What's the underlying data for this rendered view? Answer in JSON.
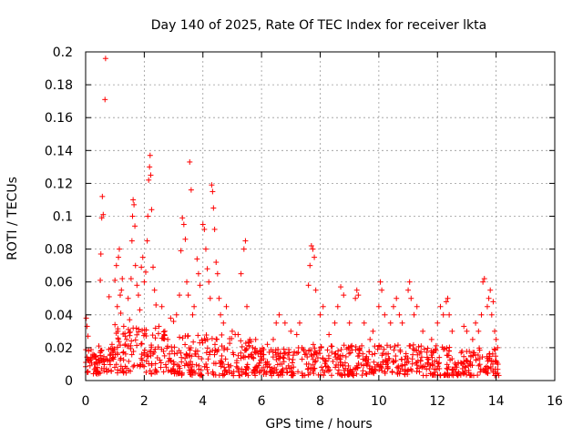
{
  "chart_data": {
    "type": "scatter",
    "title": "Day 140 of 2025, Rate Of TEC Index for receiver lkta",
    "xlabel": "GPS time / hours",
    "ylabel": "ROTI / TECUs",
    "xlim": [
      0,
      16
    ],
    "ylim": [
      0,
      0.2
    ],
    "xticks": [
      0,
      2,
      4,
      6,
      8,
      10,
      12,
      14,
      16
    ],
    "xtick_labels": [
      "0",
      "2",
      "4",
      "6",
      "8",
      "10",
      "12",
      "14",
      "16"
    ],
    "yticks": [
      0,
      0.02,
      0.04,
      0.06,
      0.08,
      0.1,
      0.12,
      0.14,
      0.16,
      0.18,
      0.2
    ],
    "ytick_labels": [
      "0",
      "0.02",
      "0.04",
      "0.06",
      "0.08",
      "0.1",
      "0.12",
      "0.14",
      "0.16",
      "0.18",
      "0.2"
    ],
    "grid": true,
    "marker": "+",
    "color": "#ff0000",
    "series": [
      {
        "name": "ROTI",
        "points": [
          [
            0.02,
            0.038
          ],
          [
            0.05,
            0.033
          ],
          [
            0.08,
            0.027
          ],
          [
            0.1,
            0.018
          ],
          [
            0.12,
            0.012
          ],
          [
            0.15,
            0.009
          ],
          [
            0.18,
            0.014
          ],
          [
            0.2,
            0.011
          ],
          [
            0.25,
            0.016
          ],
          [
            0.3,
            0.01
          ],
          [
            0.35,
            0.013
          ],
          [
            0.4,
            0.008
          ],
          [
            0.45,
            0.021
          ],
          [
            0.5,
            0.017
          ],
          [
            0.5,
            0.061
          ],
          [
            0.52,
            0.077
          ],
          [
            0.55,
            0.099
          ],
          [
            0.57,
            0.112
          ],
          [
            0.6,
            0.101
          ],
          [
            0.62,
            0.013
          ],
          [
            0.66,
            0.171
          ],
          [
            0.68,
            0.196
          ],
          [
            0.75,
            0.012
          ],
          [
            0.8,
            0.051
          ],
          [
            0.85,
            0.016
          ],
          [
            0.9,
            0.022
          ],
          [
            0.95,
            0.018
          ],
          [
            1.0,
            0.034
          ],
          [
            1.0,
            0.061
          ],
          [
            1.05,
            0.07
          ],
          [
            1.08,
            0.045
          ],
          [
            1.1,
            0.03
          ],
          [
            1.12,
            0.075
          ],
          [
            1.15,
            0.08
          ],
          [
            1.18,
            0.052
          ],
          [
            1.2,
            0.041
          ],
          [
            1.22,
            0.055
          ],
          [
            1.25,
            0.062
          ],
          [
            1.3,
            0.033
          ],
          [
            1.35,
            0.027
          ],
          [
            1.4,
            0.025
          ],
          [
            1.45,
            0.05
          ],
          [
            1.5,
            0.037
          ],
          [
            1.55,
            0.062
          ],
          [
            1.58,
            0.085
          ],
          [
            1.6,
            0.1
          ],
          [
            1.62,
            0.11
          ],
          [
            1.65,
            0.107
          ],
          [
            1.68,
            0.094
          ],
          [
            1.7,
            0.07
          ],
          [
            1.75,
            0.058
          ],
          [
            1.8,
            0.052
          ],
          [
            1.85,
            0.043
          ],
          [
            1.9,
            0.069
          ],
          [
            1.95,
            0.075
          ],
          [
            2.0,
            0.06
          ],
          [
            2.05,
            0.066
          ],
          [
            2.1,
            0.085
          ],
          [
            2.12,
            0.1
          ],
          [
            2.15,
            0.122
          ],
          [
            2.18,
            0.13
          ],
          [
            2.2,
            0.137
          ],
          [
            2.22,
            0.125
          ],
          [
            2.25,
            0.104
          ],
          [
            2.3,
            0.069
          ],
          [
            2.35,
            0.055
          ],
          [
            2.4,
            0.046
          ],
          [
            2.5,
            0.033
          ],
          [
            2.6,
            0.045
          ],
          [
            2.7,
            0.03
          ],
          [
            2.8,
            0.025
          ],
          [
            2.9,
            0.038
          ],
          [
            3.0,
            0.036
          ],
          [
            3.1,
            0.04
          ],
          [
            3.2,
            0.052
          ],
          [
            3.25,
            0.079
          ],
          [
            3.3,
            0.099
          ],
          [
            3.35,
            0.095
          ],
          [
            3.4,
            0.086
          ],
          [
            3.45,
            0.06
          ],
          [
            3.5,
            0.052
          ],
          [
            3.55,
            0.133
          ],
          [
            3.6,
            0.116
          ],
          [
            3.65,
            0.04
          ],
          [
            3.7,
            0.045
          ],
          [
            3.8,
            0.074
          ],
          [
            3.85,
            0.065
          ],
          [
            3.9,
            0.058
          ],
          [
            4.0,
            0.095
          ],
          [
            4.05,
            0.092
          ],
          [
            4.1,
            0.08
          ],
          [
            4.15,
            0.068
          ],
          [
            4.2,
            0.06
          ],
          [
            4.25,
            0.05
          ],
          [
            4.3,
            0.119
          ],
          [
            4.33,
            0.115
          ],
          [
            4.36,
            0.105
          ],
          [
            4.4,
            0.092
          ],
          [
            4.45,
            0.072
          ],
          [
            4.5,
            0.065
          ],
          [
            4.55,
            0.05
          ],
          [
            4.6,
            0.04
          ],
          [
            4.7,
            0.035
          ],
          [
            4.8,
            0.045
          ],
          [
            5.0,
            0.03
          ],
          [
            5.1,
            0.028
          ],
          [
            5.2,
            0.028
          ],
          [
            5.3,
            0.065
          ],
          [
            5.4,
            0.08
          ],
          [
            5.45,
            0.085
          ],
          [
            5.5,
            0.045
          ],
          [
            5.6,
            0.025
          ],
          [
            5.7,
            0.02
          ],
          [
            5.8,
            0.025
          ],
          [
            6.0,
            0.018
          ],
          [
            6.2,
            0.022
          ],
          [
            6.4,
            0.025
          ],
          [
            6.5,
            0.035
          ],
          [
            6.6,
            0.04
          ],
          [
            6.8,
            0.035
          ],
          [
            7.0,
            0.03
          ],
          [
            7.2,
            0.028
          ],
          [
            7.3,
            0.035
          ],
          [
            7.6,
            0.058
          ],
          [
            7.65,
            0.07
          ],
          [
            7.7,
            0.082
          ],
          [
            7.75,
            0.08
          ],
          [
            7.8,
            0.075
          ],
          [
            7.85,
            0.055
          ],
          [
            8.0,
            0.04
          ],
          [
            8.1,
            0.045
          ],
          [
            8.3,
            0.028
          ],
          [
            8.5,
            0.035
          ],
          [
            8.6,
            0.045
          ],
          [
            8.7,
            0.057
          ],
          [
            8.8,
            0.052
          ],
          [
            9.0,
            0.035
          ],
          [
            9.2,
            0.05
          ],
          [
            9.25,
            0.055
          ],
          [
            9.3,
            0.052
          ],
          [
            9.5,
            0.035
          ],
          [
            9.7,
            0.025
          ],
          [
            9.8,
            0.03
          ],
          [
            10.0,
            0.045
          ],
          [
            10.05,
            0.06
          ],
          [
            10.1,
            0.055
          ],
          [
            10.2,
            0.04
          ],
          [
            10.4,
            0.035
          ],
          [
            10.5,
            0.045
          ],
          [
            10.6,
            0.05
          ],
          [
            10.7,
            0.04
          ],
          [
            10.8,
            0.035
          ],
          [
            11.0,
            0.055
          ],
          [
            11.05,
            0.06
          ],
          [
            11.1,
            0.05
          ],
          [
            11.2,
            0.04
          ],
          [
            11.3,
            0.045
          ],
          [
            11.5,
            0.03
          ],
          [
            11.8,
            0.025
          ],
          [
            12.0,
            0.035
          ],
          [
            12.1,
            0.045
          ],
          [
            12.2,
            0.04
          ],
          [
            12.3,
            0.048
          ],
          [
            12.35,
            0.05
          ],
          [
            12.4,
            0.04
          ],
          [
            12.5,
            0.03
          ],
          [
            12.9,
            0.033
          ],
          [
            13.0,
            0.03
          ],
          [
            13.2,
            0.025
          ],
          [
            13.3,
            0.035
          ],
          [
            13.4,
            0.03
          ],
          [
            13.5,
            0.04
          ],
          [
            13.55,
            0.06
          ],
          [
            13.6,
            0.062
          ],
          [
            13.7,
            0.045
          ],
          [
            13.75,
            0.05
          ],
          [
            13.8,
            0.055
          ],
          [
            13.85,
            0.04
          ],
          [
            13.9,
            0.048
          ],
          [
            13.95,
            0.03
          ],
          [
            14.0,
            0.025
          ],
          [
            14.05,
            0.02
          ]
        ]
      }
    ],
    "bands": [
      {
        "x": [
          0.0,
          0.5
        ],
        "low": 0.004,
        "high": 0.019
      },
      {
        "x": [
          0.5,
          1.0
        ],
        "low": 0.005,
        "high": 0.02
      },
      {
        "x": [
          1.0,
          2.7
        ],
        "low": 0.004,
        "high": 0.032
      },
      {
        "x": [
          2.7,
          3.2
        ],
        "low": 0.004,
        "high": 0.022
      },
      {
        "x": [
          3.2,
          5.0
        ],
        "low": 0.003,
        "high": 0.028
      },
      {
        "x": [
          5.0,
          5.7
        ],
        "low": 0.003,
        "high": 0.025
      },
      {
        "x": [
          5.7,
          7.6
        ],
        "low": 0.003,
        "high": 0.02
      },
      {
        "x": [
          7.6,
          10.0
        ],
        "low": 0.003,
        "high": 0.022
      },
      {
        "x": [
          10.0,
          12.5
        ],
        "low": 0.003,
        "high": 0.022
      },
      {
        "x": [
          12.5,
          12.8
        ],
        "low": 0.003,
        "high": 0.012
      },
      {
        "x": [
          12.8,
          14.1
        ],
        "low": 0.003,
        "high": 0.02
      }
    ]
  }
}
